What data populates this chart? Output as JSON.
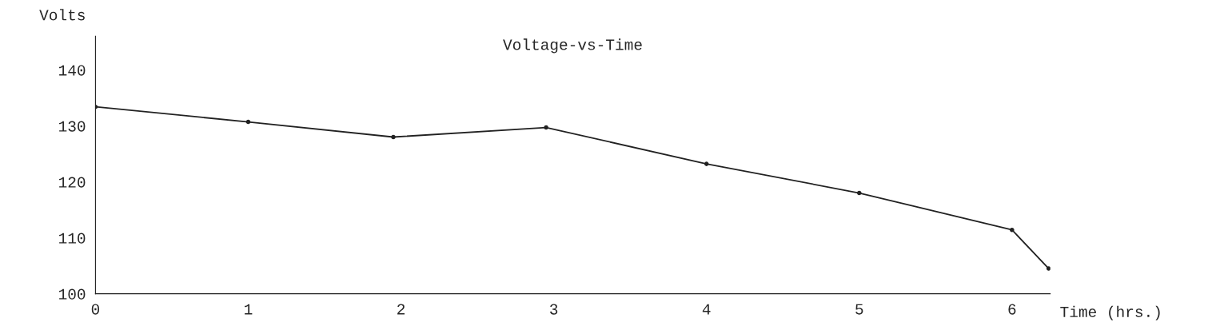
{
  "chart_data": {
    "type": "line",
    "title": "Voltage-vs-Time",
    "xlabel": "Time (hrs.)",
    "ylabel": "Volts",
    "x": [
      0,
      1,
      1.95,
      2.95,
      4,
      5,
      6,
      6.24
    ],
    "values": [
      133.4,
      130.7,
      128,
      129.7,
      123.2,
      118,
      111.4,
      104.5
    ],
    "color": "#222222",
    "marker": "circle",
    "line_style": "solid",
    "grid": false,
    "legend": false,
    "xlim": [
      0,
      6.25
    ],
    "ylim": [
      100,
      146
    ],
    "xticks": [
      0,
      1,
      2,
      3,
      4,
      5,
      6
    ],
    "yticks": [
      100,
      110,
      120,
      130,
      140
    ]
  }
}
